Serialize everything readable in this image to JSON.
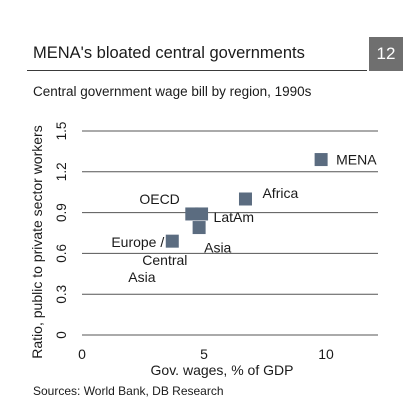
{
  "header": {
    "title": "MENA's bloated central governments",
    "badge": "12",
    "subtitle": "Central government wage bill by region, 1990s"
  },
  "footer": {
    "source": "Sources: World Bank, DB Research"
  },
  "colors": {
    "marker": "#5b6c80",
    "grid": "#555555",
    "badge_bg": "#6f6f6f"
  },
  "chart_data": {
    "type": "scatter",
    "title": "",
    "xlabel": "Gov. wages, % of GDP",
    "ylabel": "Ratio, public to private sector workers",
    "xlim": [
      0,
      12
    ],
    "ylim": [
      0,
      1.5
    ],
    "xticks": [
      "0",
      "5",
      "10"
    ],
    "yticks": [
      "0",
      "0.3",
      "0.6",
      "0.9",
      "1.2",
      "1.5"
    ],
    "grid": "horizontal",
    "points": [
      {
        "label": "MENA",
        "x": 9.8,
        "y": 1.29
      },
      {
        "label": "Africa",
        "x": 6.7,
        "y": 1.0
      },
      {
        "label": "OECD",
        "x": 4.5,
        "y": 0.89
      },
      {
        "label": "LatAm",
        "x": 4.9,
        "y": 0.89
      },
      {
        "label": "Asia",
        "x": 4.8,
        "y": 0.79
      },
      {
        "label": "Europe / Central Asia",
        "x": 3.7,
        "y": 0.69
      }
    ]
  }
}
